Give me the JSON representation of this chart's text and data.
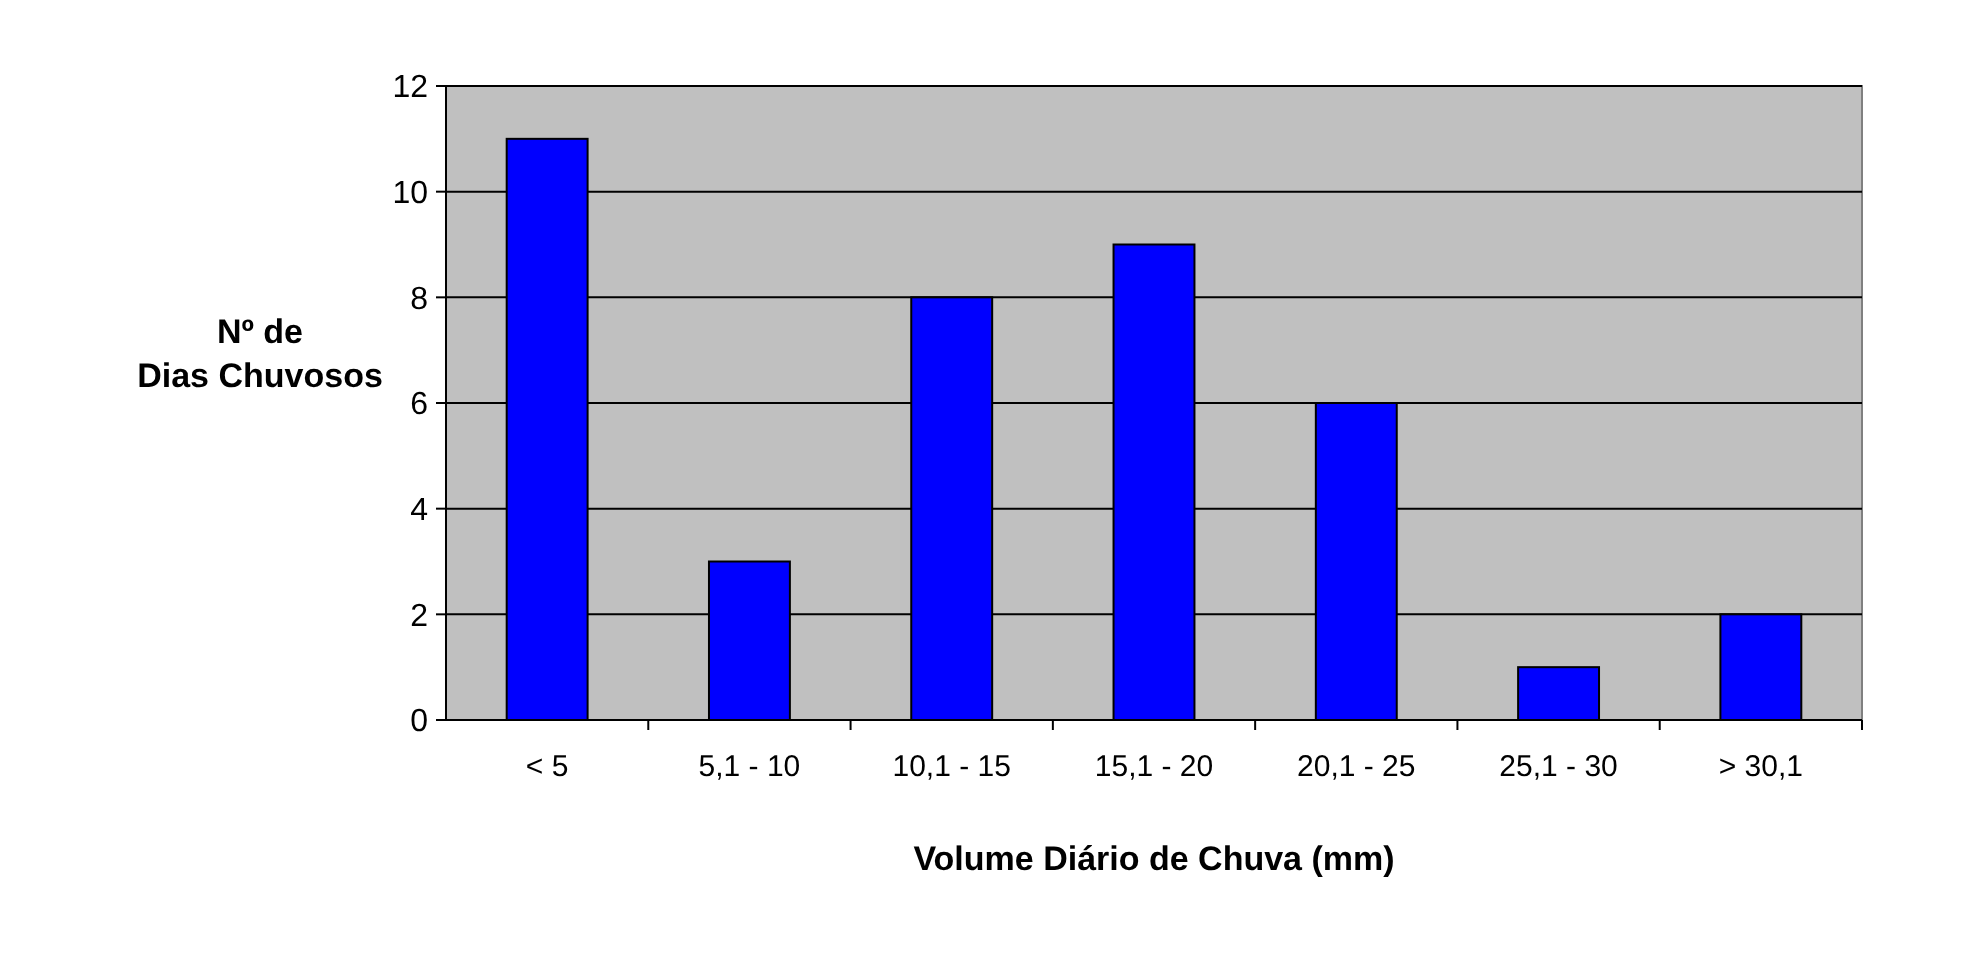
{
  "chart_data": {
    "type": "bar",
    "xlabel": "Volume Diário de Chuva (mm)",
    "ylabel": "Nº de Dias Chuvosos",
    "categories": [
      "< 5",
      "5,1 - 10",
      "10,1 - 15",
      "15,1 - 20",
      "20,1 - 25",
      "25,1 - 30",
      "> 30,1"
    ],
    "values": [
      11,
      3,
      8,
      9,
      6,
      1,
      2
    ],
    "color": "#0000ff",
    "ylim": [
      0,
      12
    ],
    "yticks": [
      0,
      2,
      4,
      6,
      8,
      10,
      12
    ],
    "grid": "y"
  }
}
